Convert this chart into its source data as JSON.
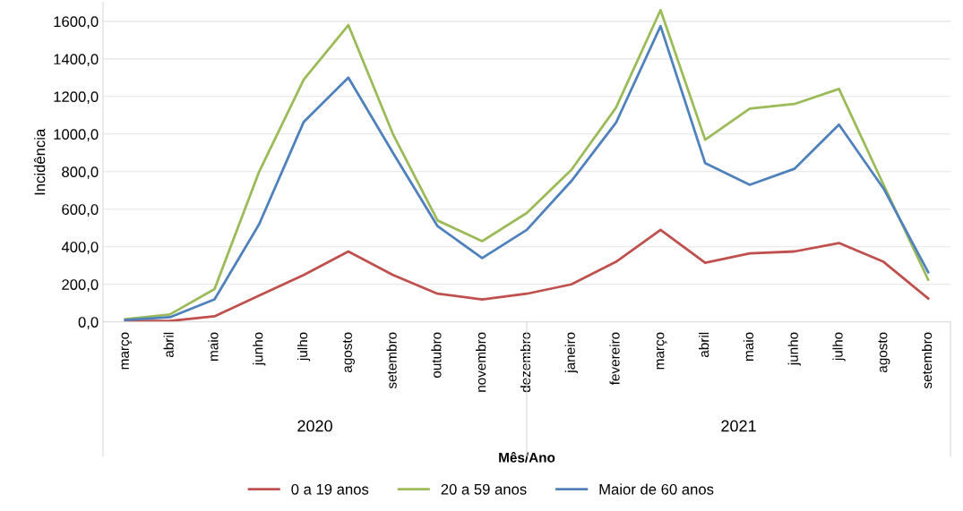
{
  "chart_data": {
    "type": "line",
    "xlabel": "Mês/Ano",
    "ylabel": "Incidência",
    "categories": [
      "março",
      "abril",
      "maio",
      "junho",
      "julho",
      "agosto",
      "setembro",
      "outubro",
      "novembro",
      "dezembro",
      "janeiro",
      "fevereiro",
      "março",
      "abril",
      "maio",
      "junho",
      "julho",
      "agosto",
      "setembro"
    ],
    "series": [
      {
        "name": "0 a 19 anos",
        "color": "#c0504d",
        "values": [
          5,
          5,
          30,
          140,
          250,
          375,
          250,
          150,
          120,
          150,
          200,
          320,
          490,
          315,
          365,
          375,
          420,
          320,
          125
        ]
      },
      {
        "name": "20 a 59 anos",
        "color": "#9bbb59",
        "values": [
          15,
          40,
          175,
          800,
          1290,
          1580,
          1000,
          540,
          430,
          580,
          810,
          1140,
          1660,
          970,
          1135,
          1160,
          1240,
          730,
          225
        ]
      },
      {
        "name": "Maior de 60 anos",
        "color": "#4f81bd",
        "values": [
          10,
          25,
          120,
          520,
          1065,
          1300,
          900,
          510,
          340,
          490,
          750,
          1060,
          1575,
          845,
          730,
          815,
          1050,
          710,
          265
        ]
      }
    ],
    "ylim": [
      0,
      1700
    ],
    "yticks": [
      {
        "value": 0,
        "label": "0,0"
      },
      {
        "value": 200,
        "label": "200,0"
      },
      {
        "value": 400,
        "label": "400,0"
      },
      {
        "value": 600,
        "label": "600,0"
      },
      {
        "value": 800,
        "label": "800,0"
      },
      {
        "value": 1000,
        "label": "1000,0"
      },
      {
        "value": 1200,
        "label": "1200,0"
      },
      {
        "value": 1400,
        "label": "1400,0"
      },
      {
        "value": 1600,
        "label": "1600,0"
      }
    ],
    "grid": "y",
    "legend": "bottom",
    "marker": "none",
    "line_style": "solid",
    "annotations": [
      "2020",
      "2021"
    ]
  }
}
